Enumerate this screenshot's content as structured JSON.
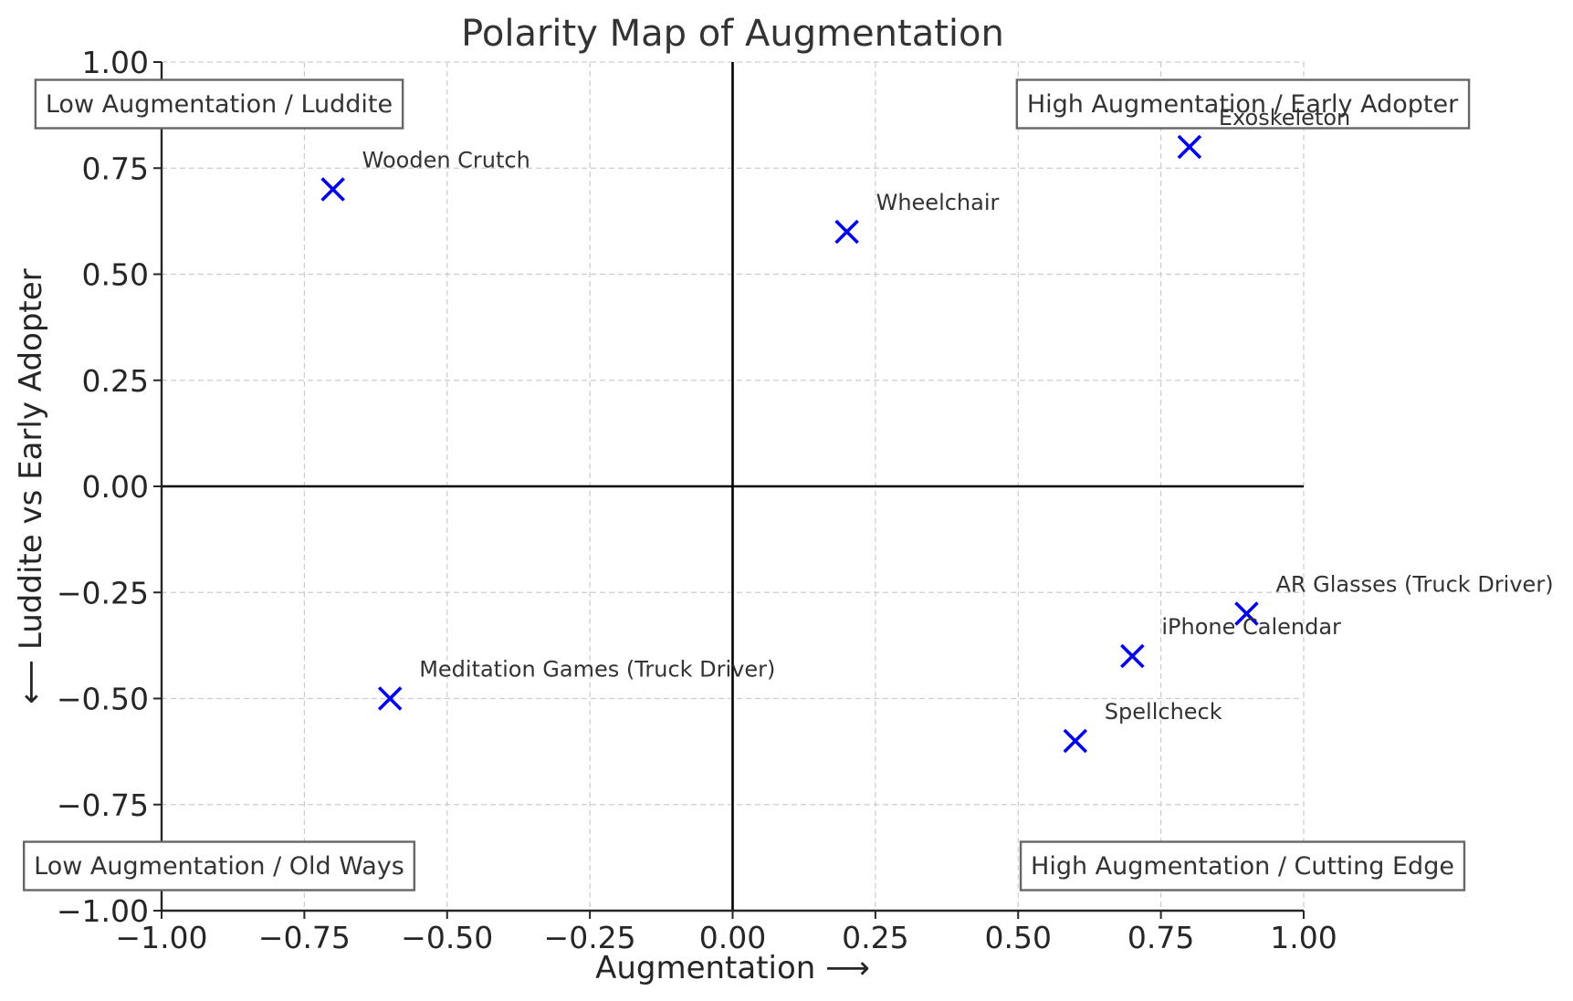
{
  "chart_data": {
    "type": "scatter",
    "title": "Polarity Map of Augmentation",
    "xlabel": "Augmentation ⟶",
    "ylabel": "⟵ Luddite vs Early Adopter",
    "xlim": [
      -1.0,
      1.0
    ],
    "ylim": [
      -1.0,
      1.0
    ],
    "x_ticks": [
      "−1.00",
      "−0.75",
      "−0.50",
      "−0.25",
      "0.00",
      "0.25",
      "0.50",
      "0.75",
      "1.00"
    ],
    "y_ticks": [
      "−1.00",
      "−0.75",
      "−0.50",
      "−0.25",
      "0.00",
      "0.25",
      "0.50",
      "0.75",
      "1.00"
    ],
    "grid": true,
    "marker_color": "#0000ee",
    "marker": "x",
    "points": [
      {
        "label": "Wooden Crutch",
        "x": -0.7,
        "y": 0.7
      },
      {
        "label": "Wheelchair",
        "x": 0.2,
        "y": 0.6
      },
      {
        "label": "Exoskeleton",
        "x": 0.8,
        "y": 0.8
      },
      {
        "label": "Meditation Games (Truck Driver)",
        "x": -0.6,
        "y": -0.5
      },
      {
        "label": "AR Glasses (Truck Driver)",
        "x": 0.9,
        "y": -0.3
      },
      {
        "label": "iPhone Calendar",
        "x": 0.7,
        "y": -0.4
      },
      {
        "label": "Spellcheck",
        "x": 0.6,
        "y": -0.6
      }
    ],
    "quadrant_labels": {
      "top_left": "Low Augmentation / Luddite",
      "top_right": "High Augmentation / Early Adopter",
      "bottom_left": "Low Augmentation / Old Ways",
      "bottom_right": "High Augmentation / Cutting Edge"
    }
  }
}
